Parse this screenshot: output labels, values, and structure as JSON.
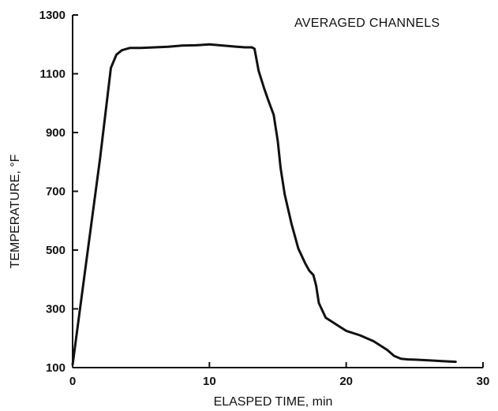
{
  "chart_data": {
    "type": "line",
    "title": "",
    "annotation": "AVERAGED CHANNELS",
    "xlabel": "ELASPED TIME, min",
    "ylabel": "TEMPERATURE, °F",
    "xlim": [
      0,
      30
    ],
    "ylim": [
      100,
      1300
    ],
    "xticks": [
      0,
      10,
      20,
      30
    ],
    "yticks": [
      100,
      300,
      500,
      700,
      900,
      1100,
      1300
    ],
    "grid": false,
    "legend": "none",
    "series": [
      {
        "x": [
          0,
          1,
          2,
          2.8,
          3.2,
          3.6,
          4.2,
          5,
          6,
          7,
          8,
          9,
          10,
          11,
          12,
          12.6,
          13.1,
          13.3,
          13.6,
          14,
          14.3,
          14.7,
          15,
          15.2,
          15.5,
          16,
          16.5,
          17,
          17.3,
          17.6,
          17.8,
          18,
          18.3,
          18.5,
          19,
          19.5,
          20,
          21,
          22,
          23,
          23.5,
          24,
          24.5,
          25,
          26,
          27,
          28
        ],
        "y": [
          110,
          460,
          810,
          1120,
          1165,
          1180,
          1188,
          1188,
          1190,
          1192,
          1196,
          1197,
          1200,
          1196,
          1192,
          1190,
          1190,
          1185,
          1110,
          1050,
          1010,
          960,
          870,
          780,
          690,
          590,
          505,
          455,
          430,
          415,
          380,
          320,
          290,
          270,
          255,
          240,
          225,
          210,
          190,
          160,
          140,
          130,
          128,
          127,
          125,
          122,
          120
        ]
      }
    ]
  }
}
